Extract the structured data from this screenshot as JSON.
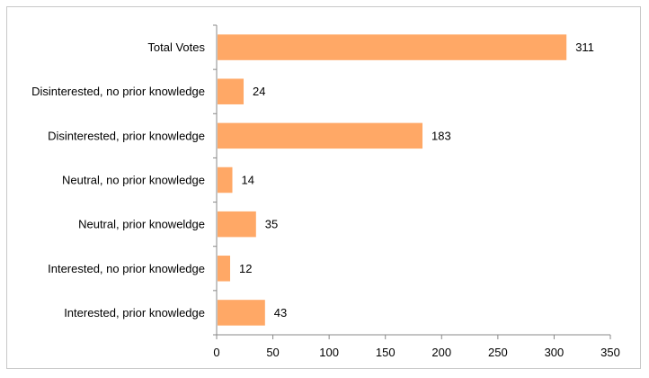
{
  "chart_data": {
    "type": "bar",
    "orientation": "horizontal",
    "title": "",
    "xlabel": "",
    "ylabel": "",
    "categories": [
      "Total Votes",
      "Disinterested, no prior knowledge",
      "Disinterested, prior knowledge",
      "Neutral, no prior knowledge",
      "Neutral, prior knoweldge",
      "Interested, no prior knowledge",
      "Interested, prior knowledge"
    ],
    "values": [
      311,
      24,
      183,
      14,
      35,
      12,
      43
    ],
    "value_labels": [
      "311",
      "24",
      "183",
      "14",
      "35",
      "12",
      "43"
    ],
    "xlim": [
      0,
      350
    ],
    "x_ticks": [
      "0",
      "50",
      "100",
      "150",
      "200",
      "250",
      "300",
      "350"
    ],
    "grid": false,
    "legend": "none",
    "bar_color": "#FFA866"
  }
}
